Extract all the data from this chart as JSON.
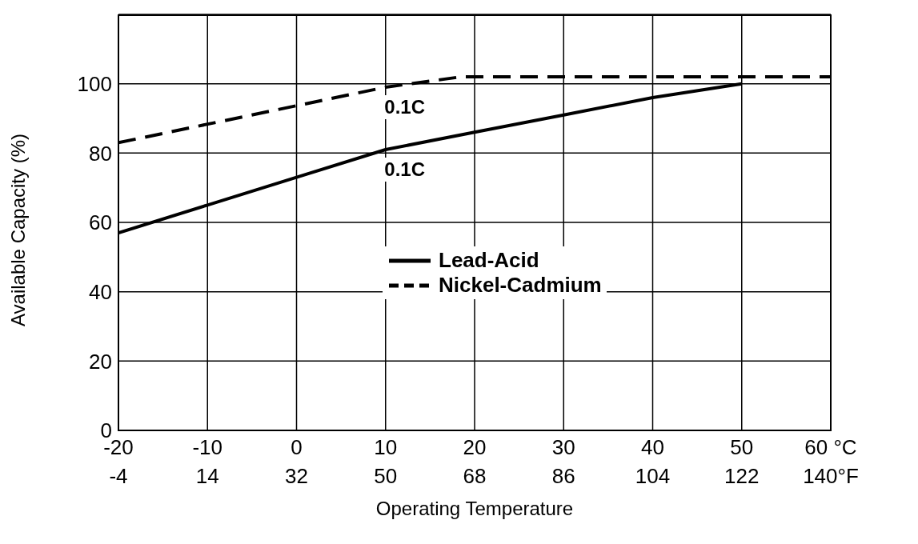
{
  "chart_data": {
    "type": "line",
    "xlabel": "Operating Temperature",
    "ylabel": "Available Capacity (%)",
    "xlim": [
      -20,
      60
    ],
    "xticks": [
      -20,
      -10,
      0,
      10,
      20,
      30,
      40,
      50,
      {
        "value": 60,
        "label": "60 °C"
      }
    ],
    "x2lim": [
      -4,
      140
    ],
    "x2ticks": [
      -4,
      14,
      32,
      50,
      68,
      86,
      104,
      122,
      {
        "value": 140,
        "label": "140°F"
      }
    ],
    "ylim": [
      0,
      120
    ],
    "yticks": [
      0,
      20,
      40,
      60,
      80,
      100
    ],
    "grid": true,
    "legend": "center",
    "marker": "none",
    "series": [
      {
        "name": "Lead-Acid",
        "color": "#000000",
        "line_style": "solid",
        "x": [
          -20,
          -10,
          0,
          10,
          20,
          30,
          40,
          50
        ],
        "values": [
          57,
          65,
          73,
          81,
          86,
          91,
          96,
          100
        ]
      },
      {
        "name": "Nickel-Cadmium",
        "color": "#000000",
        "line_style": "dashed",
        "x": [
          -20,
          10,
          18.5,
          60
        ],
        "values": [
          83,
          99,
          102,
          102
        ]
      }
    ],
    "annotations": [
      "0.1C",
      "0.1C"
    ]
  }
}
